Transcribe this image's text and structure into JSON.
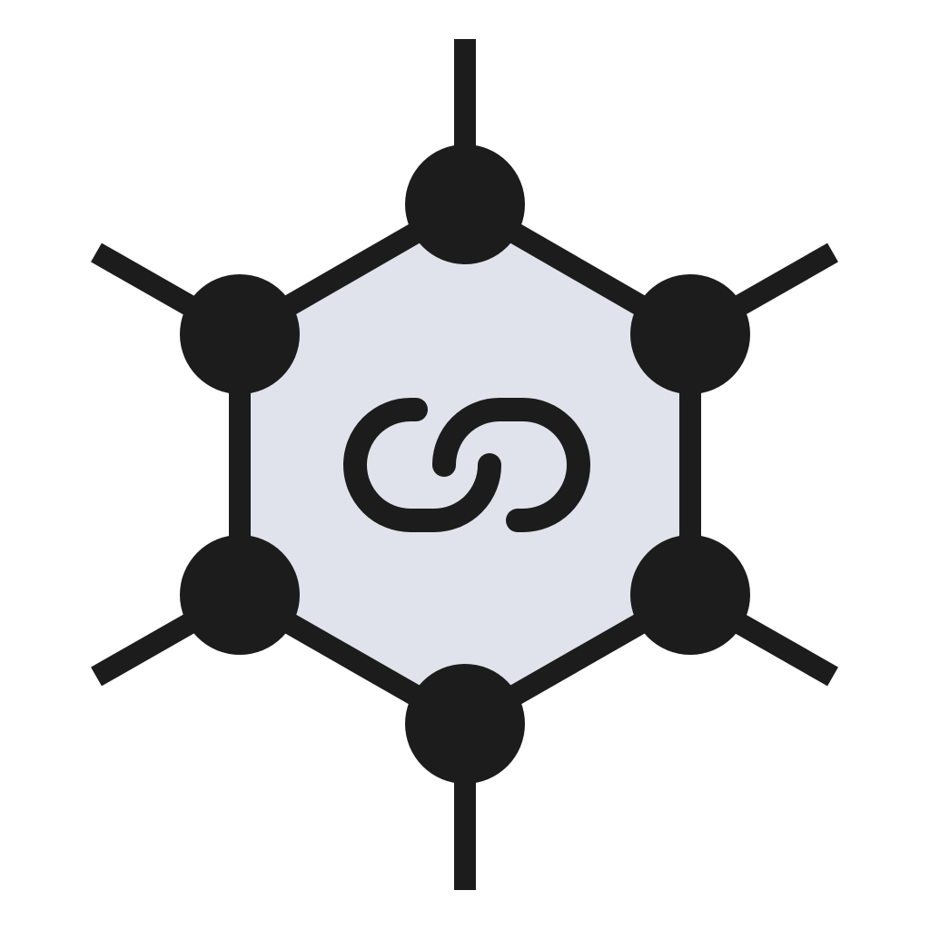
{
  "icon": {
    "name": "blockchain-network-link-icon",
    "colors": {
      "stroke": "#1c1c1c",
      "node": "#1c1c1c",
      "hex_fill": "#e1e3ec",
      "background": "#ffffff"
    }
  }
}
